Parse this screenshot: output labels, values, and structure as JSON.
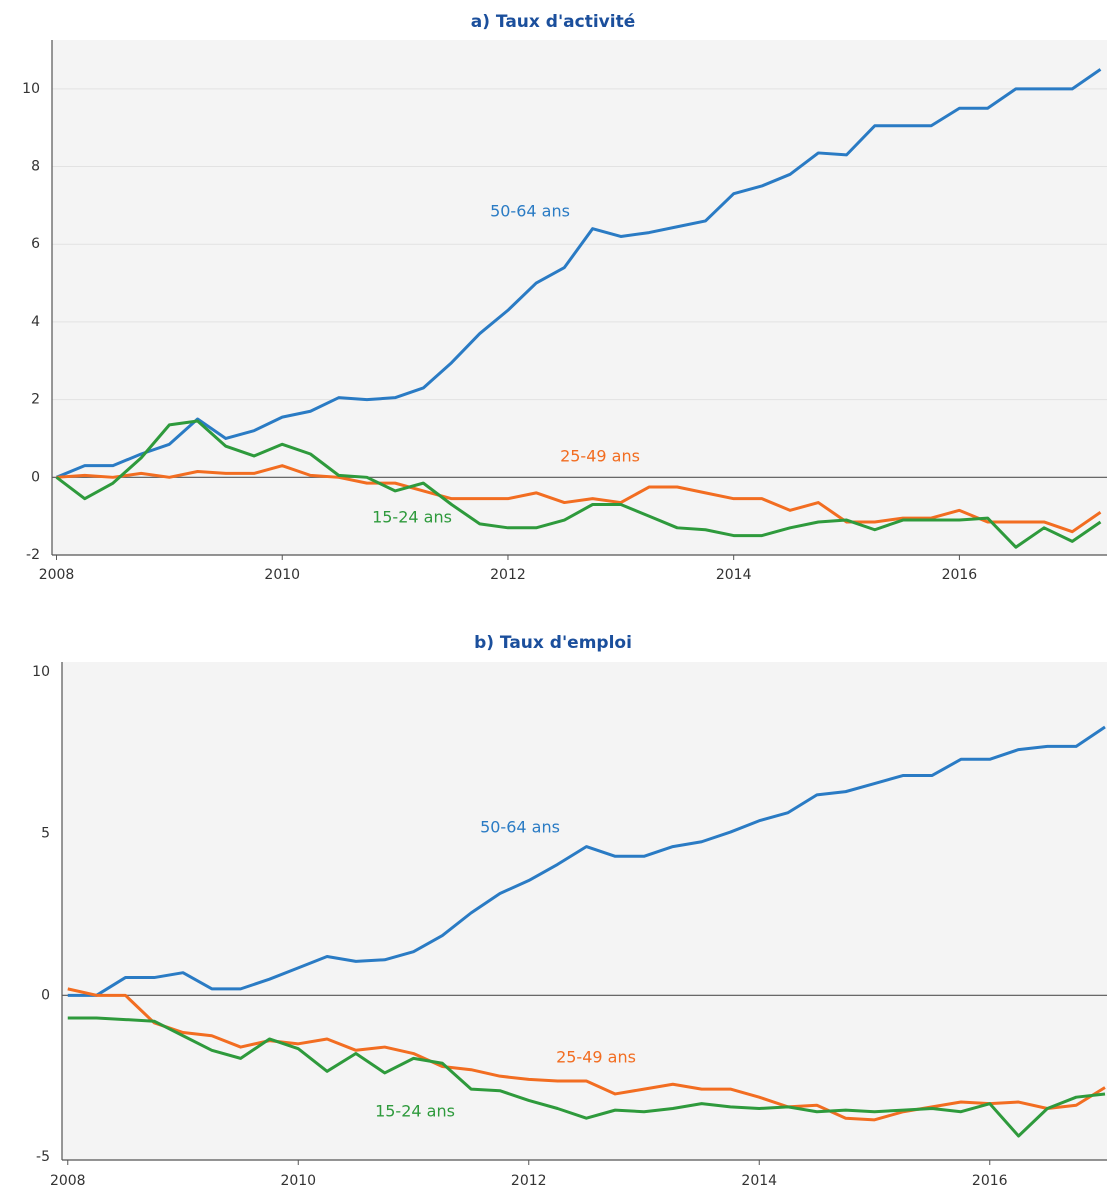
{
  "chart_data": [
    {
      "type": "line",
      "title": "a) Taux d'activité",
      "x": [
        2008,
        2008.25,
        2008.5,
        2008.75,
        2009,
        2009.25,
        2009.5,
        2009.75,
        2010,
        2010.25,
        2010.5,
        2010.75,
        2011,
        2011.25,
        2011.5,
        2011.75,
        2012,
        2012.25,
        2012.5,
        2012.75,
        2013,
        2013.25,
        2013.5,
        2013.75,
        2014,
        2014.25,
        2014.5,
        2014.75,
        2015,
        2015.25,
        2015.5,
        2015.75,
        2016,
        2016.25,
        2016.5,
        2016.75,
        2017,
        2017.25
      ],
      "xlim": [
        2007.96,
        2017.29
      ],
      "ylim": [
        -2,
        11
      ],
      "xticks": [
        2008,
        2010,
        2012,
        2014,
        2016
      ],
      "yticks": [
        -2,
        0,
        2,
        4,
        6,
        8,
        10
      ],
      "grid": true,
      "series": [
        {
          "name": "50-64 ans",
          "color": "#2a7bc4",
          "values": [
            0,
            0.3,
            0.3,
            0.6,
            0.85,
            1.5,
            1.0,
            1.2,
            1.55,
            1.7,
            2.05,
            2.0,
            2.05,
            2.3,
            2.95,
            3.7,
            4.3,
            5.0,
            5.4,
            6.4,
            6.2,
            6.3,
            6.45,
            6.6,
            7.3,
            7.5,
            7.8,
            8.35,
            8.3,
            9.05,
            9.05,
            9.05,
            9.5,
            9.5,
            10.0,
            10.0,
            10.0,
            10.5
          ]
        },
        {
          "name": "25-49 ans",
          "color": "#f26d21",
          "values": [
            0,
            0.05,
            0,
            0.1,
            0,
            0.15,
            0.1,
            0.1,
            0.3,
            0.05,
            0,
            -0.15,
            -0.15,
            -0.35,
            -0.55,
            -0.55,
            -0.55,
            -0.4,
            -0.65,
            -0.55,
            -0.65,
            -0.25,
            -0.25,
            -0.4,
            -0.55,
            -0.55,
            -0.85,
            -0.65,
            -1.15,
            -1.15,
            -1.05,
            -1.05,
            -0.85,
            -1.15,
            -1.15,
            -1.15,
            -1.4,
            -0.9
          ]
        },
        {
          "name": "15-24 ans",
          "color": "#2e9a3c",
          "values": [
            0,
            -0.55,
            -0.15,
            0.5,
            1.35,
            1.45,
            0.8,
            0.55,
            0.85,
            0.6,
            0.05,
            0.0,
            -0.35,
            -0.15,
            -0.7,
            -1.2,
            -1.3,
            -1.3,
            -1.1,
            -0.7,
            -0.7,
            -1.0,
            -1.3,
            -1.35,
            -1.5,
            -1.5,
            -1.3,
            -1.15,
            -1.1,
            -1.35,
            -1.1,
            -1.1,
            -1.1,
            -1.05,
            -1.8,
            -1.3,
            -1.65,
            -1.15
          ]
        }
      ]
    },
    {
      "type": "line",
      "title": "b) Taux d'emploi",
      "x": [
        2008,
        2008.25,
        2008.5,
        2008.75,
        2009,
        2009.25,
        2009.5,
        2009.75,
        2010,
        2010.25,
        2010.5,
        2010.75,
        2011,
        2011.25,
        2011.5,
        2011.75,
        2012,
        2012.25,
        2012.5,
        2012.75,
        2013,
        2013.25,
        2013.5,
        2013.75,
        2014,
        2014.25,
        2014.5,
        2014.75,
        2015,
        2015.25,
        2015.5,
        2015.75,
        2016,
        2016.25,
        2016.5,
        2016.75,
        2017
      ],
      "xlim": [
        2007.95,
        2017.0
      ],
      "ylim": [
        -5,
        10
      ],
      "xticks": [
        2008,
        2010,
        2012,
        2014,
        2016
      ],
      "yticks": [
        -5,
        0,
        5,
        10
      ],
      "grid": false,
      "series": [
        {
          "name": "50-64 ans",
          "color": "#2a7bc4",
          "values": [
            0,
            0,
            0.55,
            0.55,
            0.7,
            0.2,
            0.2,
            0.5,
            0.85,
            1.2,
            1.05,
            1.1,
            1.35,
            1.85,
            2.55,
            3.15,
            3.55,
            4.05,
            4.6,
            4.3,
            4.3,
            4.6,
            4.75,
            5.05,
            5.4,
            5.65,
            6.2,
            6.3,
            6.55,
            6.8,
            6.8,
            7.3,
            7.3,
            7.6,
            7.7,
            7.7,
            8.3
          ]
        },
        {
          "name": "25-49 ans",
          "color": "#f26d21",
          "values": [
            0.2,
            0,
            0,
            -0.85,
            -1.15,
            -1.25,
            -1.6,
            -1.4,
            -1.5,
            -1.35,
            -1.7,
            -1.6,
            -1.8,
            -2.2,
            -2.3,
            -2.5,
            -2.6,
            -2.65,
            -2.65,
            -3.05,
            -2.9,
            -2.75,
            -2.9,
            -2.9,
            -3.15,
            -3.45,
            -3.4,
            -3.8,
            -3.85,
            -3.6,
            -3.45,
            -3.3,
            -3.35,
            -3.3,
            -3.5,
            -3.4,
            -2.85
          ]
        },
        {
          "name": "15-24 ans",
          "color": "#2e9a3c",
          "values": [
            -0.7,
            -0.7,
            -0.75,
            -0.8,
            -1.25,
            -1.7,
            -1.95,
            -1.35,
            -1.65,
            -2.35,
            -1.8,
            -2.4,
            -1.95,
            -2.1,
            -2.9,
            -2.95,
            -3.25,
            -3.5,
            -3.8,
            -3.55,
            -3.6,
            -3.5,
            -3.35,
            -3.45,
            -3.5,
            -3.45,
            -3.6,
            -3.55,
            -3.6,
            -3.55,
            -3.5,
            -3.6,
            -3.35,
            -4.35,
            -3.5,
            -3.15,
            -3.05
          ]
        }
      ]
    }
  ]
}
